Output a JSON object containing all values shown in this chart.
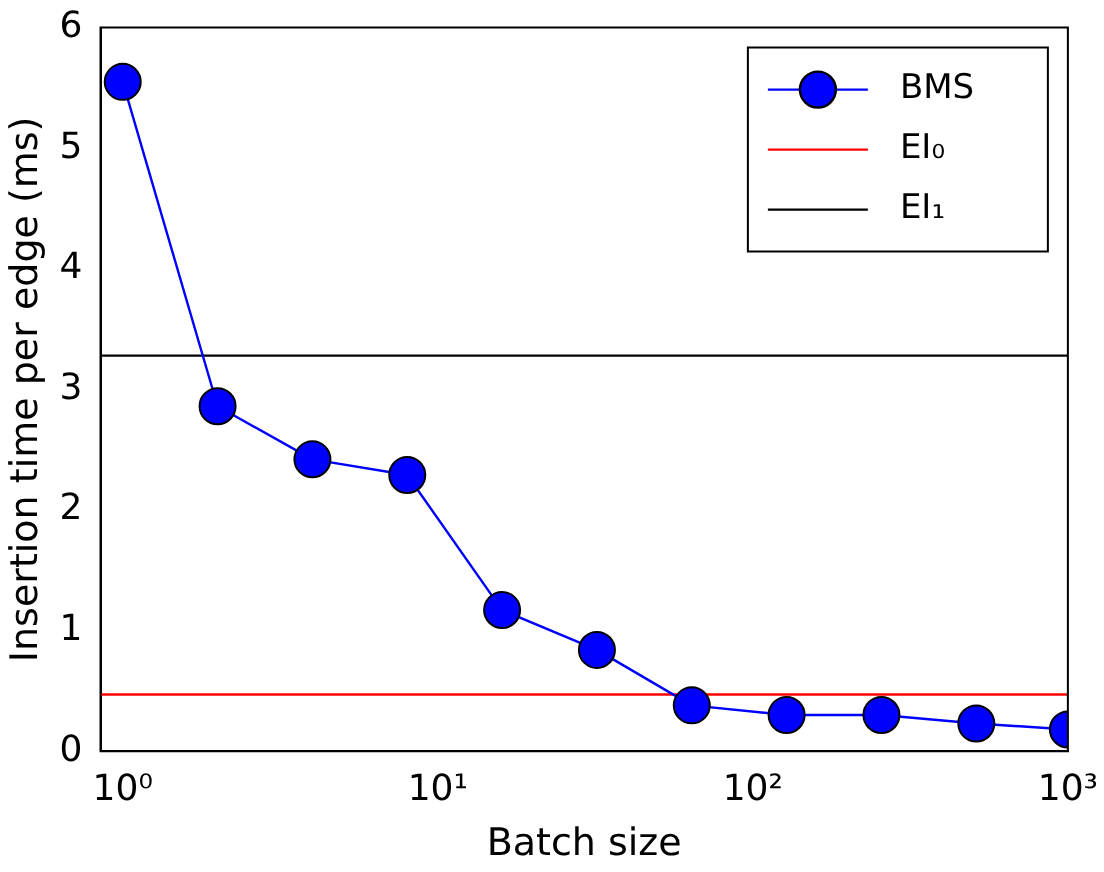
{
  "chart_data": {
    "type": "line",
    "xlabel": "Batch size",
    "ylabel": "Insertion time per edge (ms)",
    "series": [
      {
        "name": "BMS",
        "color": "#0000ff",
        "marker": "circle",
        "x": [
          1,
          2,
          4,
          8,
          16,
          32,
          64,
          128,
          256,
          512,
          1000
        ],
        "values": [
          5.55,
          2.86,
          2.42,
          2.29,
          1.17,
          0.84,
          0.38,
          0.3,
          0.3,
          0.23,
          0.18
        ]
      },
      {
        "name": "EI₀",
        "color": "#ff0000",
        "marker": "none",
        "x": [
          0.85,
          1000
        ],
        "values": [
          0.47,
          0.47
        ]
      },
      {
        "name": "EI₁",
        "color": "#000000",
        "marker": "none",
        "x": [
          0.85,
          1000
        ],
        "values": [
          3.28,
          3.28
        ]
      }
    ],
    "log": "x",
    "xlim": [
      0.85,
      1000
    ],
    "xticks": [
      {
        "value": 1,
        "label": "10⁰"
      },
      {
        "value": 10,
        "label": "10¹"
      },
      {
        "value": 100,
        "label": "10²"
      },
      {
        "value": 1000,
        "label": "10³"
      }
    ],
    "ylim": [
      0,
      6
    ],
    "yticks": [
      0,
      1,
      2,
      3,
      4,
      5,
      6
    ],
    "grid": false,
    "legend": "top right"
  }
}
